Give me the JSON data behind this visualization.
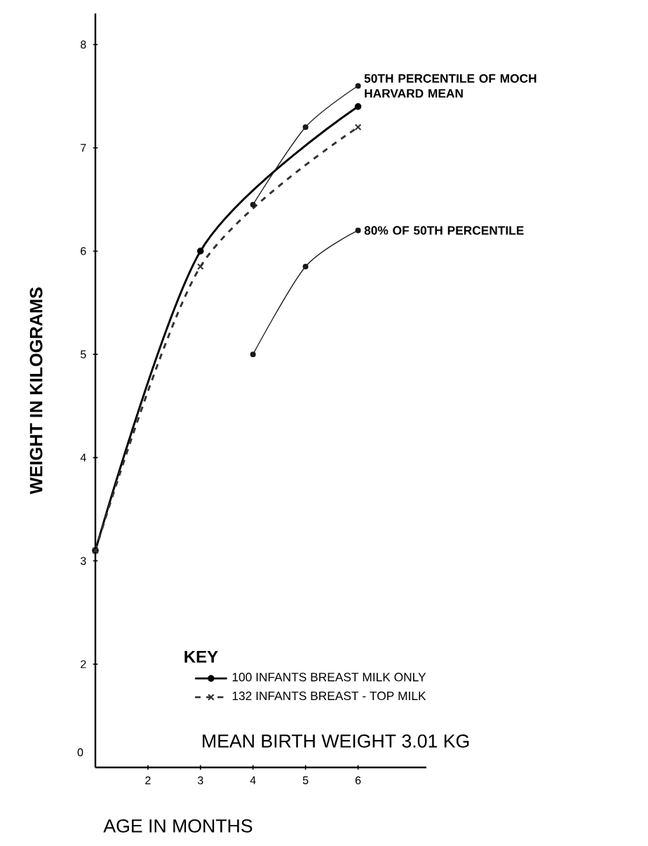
{
  "chart_data": {
    "type": "line",
    "xlabel": "AGE IN MONTHS",
    "ylabel": "WEIGHT IN KILOGRAMS",
    "legend_title": "KEY",
    "legend": "bottom",
    "xlim": [
      1,
      7.3
    ],
    "ylim": [
      1,
      8.3
    ],
    "xticks": [
      2,
      3,
      4,
      5,
      6
    ],
    "yticks": [
      2,
      3,
      4,
      5,
      6,
      7,
      8
    ],
    "grid": false,
    "series": [
      {
        "name": "100 INFANTS BREAST MILK ONLY",
        "color": "#000000",
        "x": [
          1,
          3,
          6
        ],
        "values": [
          3.1,
          6.0,
          7.4
        ],
        "marker": "circle",
        "line_style": "solid"
      },
      {
        "name": "132 INFANTS BREAST - TOP MILK",
        "color": "#333333",
        "x": [
          1,
          3,
          6
        ],
        "values": [
          3.1,
          5.85,
          7.2
        ],
        "marker": "cross",
        "line_style": "dashed"
      },
      {
        "color": "#1a1a1a",
        "x": [
          4,
          5,
          6
        ],
        "values": [
          6.45,
          7.2,
          7.6
        ],
        "marker": "circle",
        "line_style": "solid"
      },
      {
        "color": "#1a1a1a",
        "x": [
          4,
          5,
          6
        ],
        "values": [
          5.0,
          5.85,
          6.2
        ],
        "marker": "circle",
        "line_style": "solid"
      }
    ],
    "annotations": [
      {
        "text": "50TH PERCENTILE OF MOCH HARVARD MEAN",
        "x": 6,
        "y": 7.6
      },
      {
        "text": "80% OF 50TH PERCENTILE",
        "x": 6,
        "y": 6.2
      },
      "MEAN BIRTH WEIGHT 3.01 KG",
      "0"
    ]
  }
}
